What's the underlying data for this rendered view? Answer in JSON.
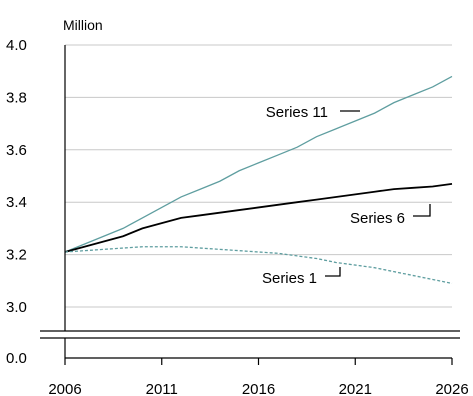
{
  "chart_data": {
    "type": "line",
    "unit_label": "Million",
    "x": [
      2006,
      2007,
      2008,
      2009,
      2010,
      2011,
      2012,
      2013,
      2014,
      2015,
      2016,
      2017,
      2018,
      2019,
      2020,
      2021,
      2022,
      2023,
      2024,
      2025,
      2026
    ],
    "x_ticks": [
      "2006",
      "2011",
      "2016",
      "2021",
      "2026"
    ],
    "y_ticks": [
      "3.0",
      "3.2",
      "3.4",
      "3.6",
      "3.8",
      "4.0"
    ],
    "y_zero_label": "0.0",
    "ylim": [
      3.0,
      4.0
    ],
    "axis_break": true,
    "grid": true,
    "series": [
      {
        "name": "Series 11",
        "color": "#5f9ea0",
        "style": "solid",
        "values": [
          3.21,
          3.24,
          3.27,
          3.3,
          3.34,
          3.38,
          3.42,
          3.45,
          3.48,
          3.52,
          3.55,
          3.58,
          3.61,
          3.65,
          3.68,
          3.71,
          3.74,
          3.78,
          3.81,
          3.84,
          3.88
        ]
      },
      {
        "name": "Series 6",
        "color": "#000000",
        "style": "solid",
        "values": [
          3.21,
          3.23,
          3.25,
          3.27,
          3.3,
          3.32,
          3.34,
          3.35,
          3.36,
          3.37,
          3.38,
          3.39,
          3.4,
          3.41,
          3.42,
          3.43,
          3.44,
          3.45,
          3.455,
          3.46,
          3.47
        ]
      },
      {
        "name": "Series 1",
        "color": "#5f9ea0",
        "style": "dashed",
        "values": [
          3.21,
          3.215,
          3.22,
          3.225,
          3.23,
          3.23,
          3.23,
          3.225,
          3.22,
          3.215,
          3.21,
          3.205,
          3.195,
          3.185,
          3.17,
          3.16,
          3.15,
          3.135,
          3.12,
          3.105,
          3.09
        ]
      }
    ]
  }
}
